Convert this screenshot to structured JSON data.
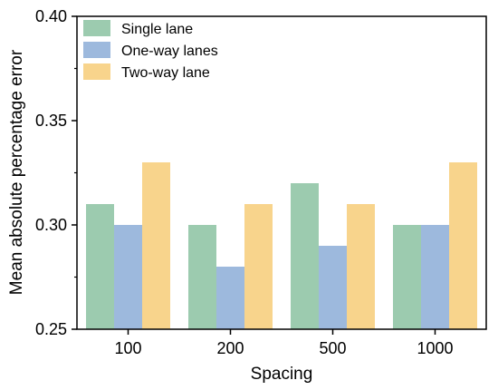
{
  "chart_data": {
    "type": "bar",
    "categories": [
      "100",
      "200",
      "500",
      "1000"
    ],
    "series": [
      {
        "name": "Single lane",
        "values": [
          0.31,
          0.3,
          0.32,
          0.3
        ],
        "color": "#9ccbaf"
      },
      {
        "name": "One-way lanes",
        "values": [
          0.3,
          0.28,
          0.29,
          0.3
        ],
        "color": "#9db9dd"
      },
      {
        "name": "Two-way lane",
        "values": [
          0.33,
          0.31,
          0.31,
          0.33
        ],
        "color": "#f8d48c"
      }
    ],
    "xlabel": "Spacing",
    "ylabel": "Mean absolute percentage error",
    "ylim": [
      0.25,
      0.4
    ],
    "yticks": [
      "0.25",
      "0.30",
      "0.35",
      "0.40"
    ],
    "grid": false,
    "legend_position": "top-left"
  }
}
